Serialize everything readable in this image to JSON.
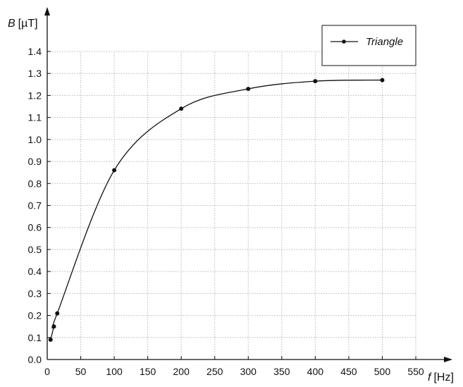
{
  "chart_data": {
    "type": "line",
    "x": [
      5,
      10,
      15,
      100,
      200,
      300,
      400,
      500
    ],
    "series": [
      {
        "name": "Triangle",
        "values": [
          0.09,
          0.15,
          0.21,
          0.86,
          1.14,
          1.23,
          1.265,
          1.27
        ]
      }
    ],
    "ylabel": {
      "symbol": "B",
      "unit": "[µT]"
    },
    "xlabel": {
      "symbol": "f",
      "unit": "[Hz]"
    },
    "xlim": [
      0,
      550
    ],
    "ylim": [
      0,
      1.4
    ],
    "xticks": [
      "0",
      "50",
      "100",
      "150",
      "200",
      "250",
      "300",
      "350",
      "400",
      "450",
      "500",
      "550"
    ],
    "yticks": [
      "0.0",
      "0.1",
      "0.2",
      "0.3",
      "0.4",
      "0.5",
      "0.6",
      "0.7",
      "0.8",
      "0.9",
      "1.0",
      "1.1",
      "1.2",
      "1.3",
      "1.4"
    ],
    "grid": true,
    "legend_position": "top-right",
    "colors": {
      "line": "#111111",
      "grid": "#b8b8b8",
      "axis": "#111111"
    }
  }
}
